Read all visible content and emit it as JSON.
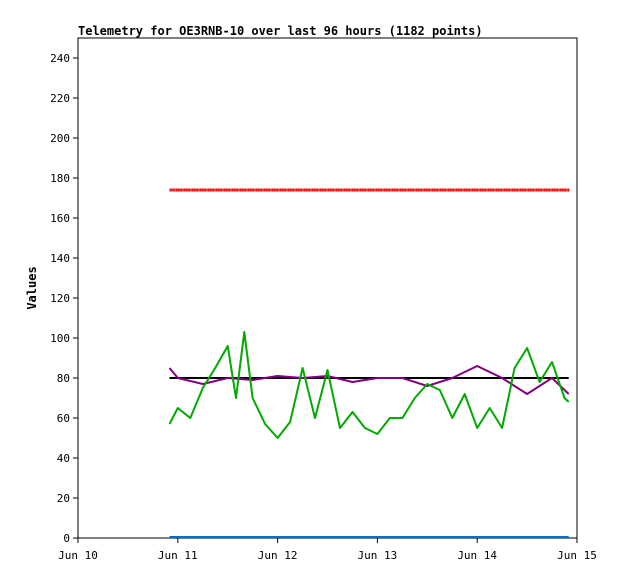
{
  "chart_data": {
    "type": "line",
    "title": "Telemetry for OE3RNB-10 over last 96 hours (1182 points)",
    "ylabel": "Values",
    "xlabel": "",
    "ylim": [
      0,
      250
    ],
    "y_ticks": [
      0,
      20,
      40,
      60,
      80,
      100,
      120,
      140,
      160,
      180,
      200,
      220,
      240
    ],
    "xlim": [
      "2024-06-10",
      "2024-06-15"
    ],
    "x_ticks": [
      {
        "label": "Jun 10",
        "day": "2024-06-10"
      },
      {
        "label": "Jun 11",
        "day": "2024-06-11"
      },
      {
        "label": "Jun 12",
        "day": "2024-06-12"
      },
      {
        "label": "Jun 13",
        "day": "2024-06-13"
      },
      {
        "label": "Jun 14",
        "day": "2024-06-14"
      },
      {
        "label": "Jun 15",
        "day": "2024-06-15"
      }
    ],
    "grid": false,
    "series": [
      {
        "color": "#ff0000",
        "style": "points",
        "x": [
          "2024-06-10 22:00",
          "2024-06-11 12:00",
          "2024-06-12 12:00",
          "2024-06-13 12:00",
          "2024-06-14 12:00",
          "2024-06-14 22:00"
        ],
        "values": [
          174,
          174,
          174,
          174,
          174,
          174
        ]
      },
      {
        "color": "#000000",
        "style": "line",
        "x": [
          "2024-06-10 22:00",
          "2024-06-14 22:00"
        ],
        "values": [
          80,
          80
        ]
      },
      {
        "color": "#0070c0",
        "style": "line",
        "x": [
          "2024-06-10 22:00",
          "2024-06-14 22:00"
        ],
        "values": [
          0.5,
          0.5
        ]
      },
      {
        "color": "#800080",
        "style": "line",
        "x": [
          "2024-06-10 22:00",
          "2024-06-11 00:00",
          "2024-06-11 06:00",
          "2024-06-11 12:00",
          "2024-06-11 18:00",
          "2024-06-12 00:00",
          "2024-06-12 06:00",
          "2024-06-12 12:00",
          "2024-06-12 18:00",
          "2024-06-13 00:00",
          "2024-06-13 06:00",
          "2024-06-13 12:00",
          "2024-06-13 18:00",
          "2024-06-14 00:00",
          "2024-06-14 06:00",
          "2024-06-14 12:00",
          "2024-06-14 18:00",
          "2024-06-14 22:00"
        ],
        "values": [
          85,
          80,
          77,
          80,
          79,
          81,
          80,
          81,
          78,
          80,
          80,
          76,
          80,
          86,
          80,
          72,
          80,
          72
        ]
      },
      {
        "color": "#00aa00",
        "style": "line",
        "x": [
          "2024-06-10 22:00",
          "2024-06-11 00:00",
          "2024-06-11 03:00",
          "2024-06-11 06:00",
          "2024-06-11 09:00",
          "2024-06-11 12:00",
          "2024-06-11 14:00",
          "2024-06-11 16:00",
          "2024-06-11 18:00",
          "2024-06-11 21:00",
          "2024-06-12 00:00",
          "2024-06-12 03:00",
          "2024-06-12 06:00",
          "2024-06-12 09:00",
          "2024-06-12 12:00",
          "2024-06-12 15:00",
          "2024-06-12 18:00",
          "2024-06-12 21:00",
          "2024-06-13 00:00",
          "2024-06-13 03:00",
          "2024-06-13 06:00",
          "2024-06-13 09:00",
          "2024-06-13 12:00",
          "2024-06-13 15:00",
          "2024-06-13 18:00",
          "2024-06-13 21:00",
          "2024-06-14 00:00",
          "2024-06-14 03:00",
          "2024-06-14 06:00",
          "2024-06-14 09:00",
          "2024-06-14 12:00",
          "2024-06-14 15:00",
          "2024-06-14 18:00",
          "2024-06-14 21:00",
          "2024-06-14 22:00"
        ],
        "values": [
          57,
          65,
          60,
          75,
          85,
          96,
          70,
          103,
          70,
          57,
          50,
          58,
          85,
          60,
          84,
          55,
          63,
          55,
          52,
          60,
          60,
          70,
          77,
          74,
          60,
          72,
          55,
          65,
          55,
          85,
          95,
          78,
          88,
          70,
          68
        ]
      }
    ]
  }
}
